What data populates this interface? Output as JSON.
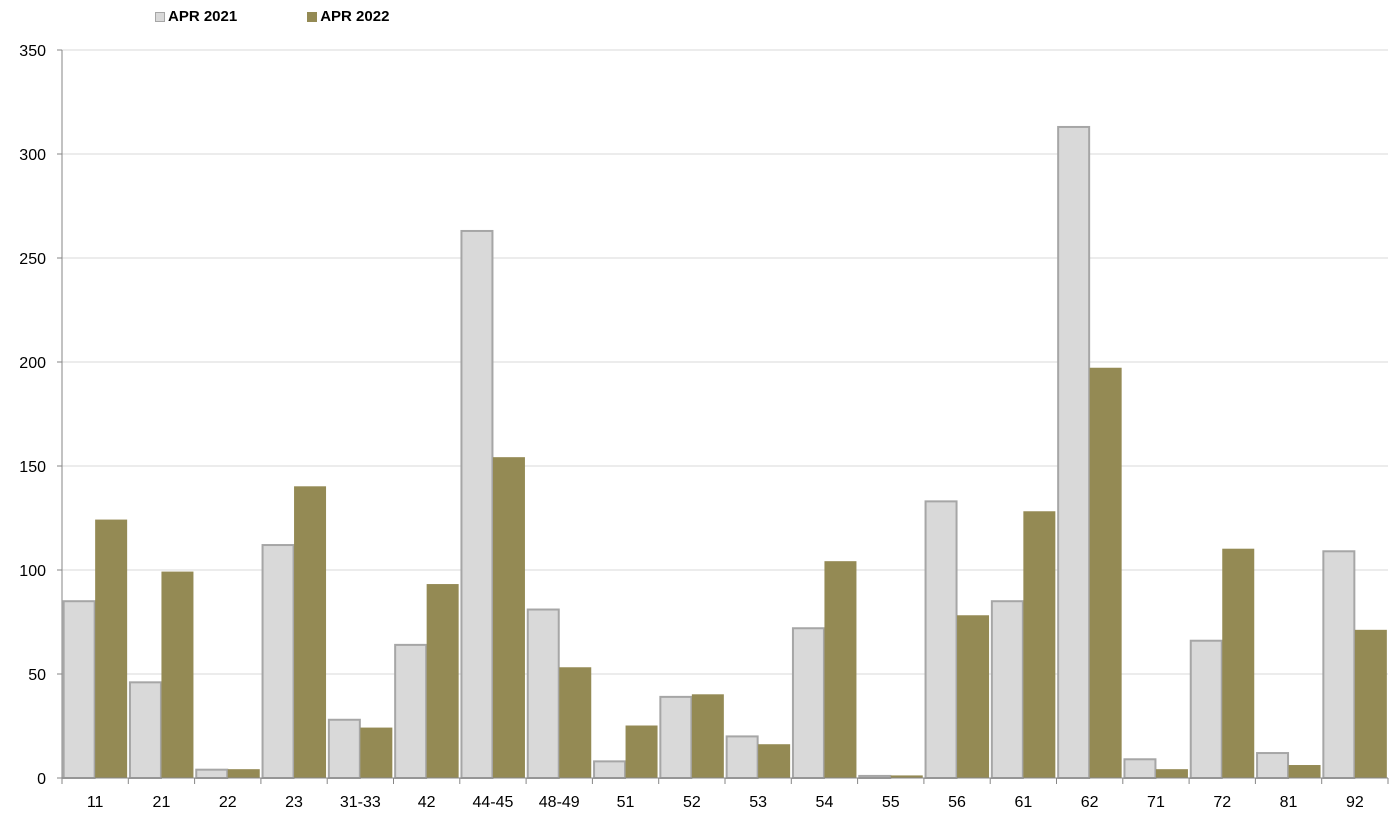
{
  "chart_data": {
    "type": "bar",
    "title": "",
    "xlabel": "",
    "ylabel": "",
    "categories": [
      "11",
      "21",
      "22",
      "23",
      "31-33",
      "42",
      "44-45",
      "48-49",
      "51",
      "52",
      "53",
      "54",
      "55",
      "56",
      "61",
      "62",
      "71",
      "72",
      "81",
      "92"
    ],
    "series": [
      {
        "name": "APR 2021",
        "color": "#d9d9d9",
        "stroke": "#a6a6a6",
        "values": [
          85,
          46,
          4,
          112,
          28,
          64,
          263,
          81,
          8,
          39,
          20,
          72,
          1,
          133,
          85,
          313,
          9,
          66,
          12,
          109
        ]
      },
      {
        "name": "APR 2022",
        "color": "#948a54",
        "stroke": "#948a54",
        "values": [
          124,
          99,
          4,
          140,
          24,
          93,
          154,
          53,
          25,
          40,
          16,
          104,
          1,
          78,
          128,
          197,
          4,
          110,
          6,
          71
        ]
      }
    ],
    "ylim": [
      0,
      350
    ],
    "yticks": [
      0,
      50,
      100,
      150,
      200,
      250,
      300,
      350
    ],
    "grid": true,
    "legend_position": "top-left"
  }
}
